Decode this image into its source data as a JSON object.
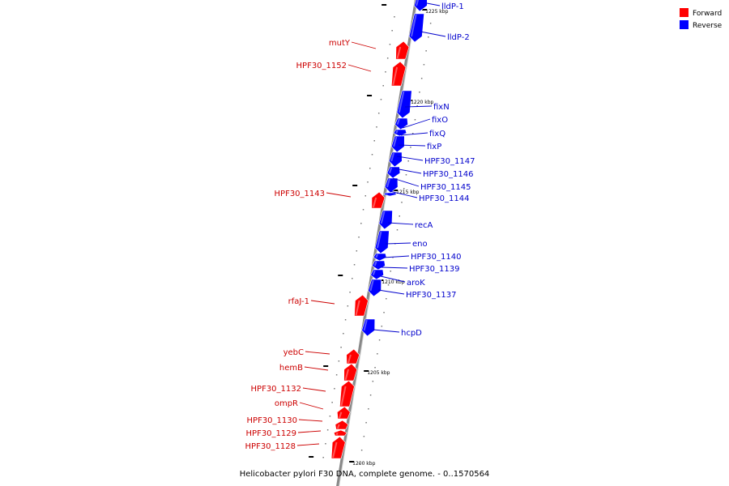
{
  "caption": "Helicobacter pylori F30 DNA, complete genome. - 0..1570564",
  "legend": [
    {
      "label": "Forward",
      "color": "#ff0000"
    },
    {
      "label": "Reverse",
      "color": "#0000ff"
    }
  ],
  "colors": {
    "forward": "#ff0000",
    "reverse": "#0000ff",
    "backbone": "#888888",
    "label_forward": "#cc0000",
    "label_reverse": "#0000cc"
  },
  "ticks": [
    {
      "label": "1225 kbp"
    },
    {
      "label": "1220 kbp"
    },
    {
      "label": "1215 kbp"
    },
    {
      "label": "1210 kbp"
    },
    {
      "label": "1205 kbp"
    },
    {
      "label": "1200 kbp"
    }
  ],
  "genes": [
    {
      "name": "lldP-1",
      "strand": "reverse"
    },
    {
      "name": "lldP-2",
      "strand": "reverse"
    },
    {
      "name": "mutY",
      "strand": "forward"
    },
    {
      "name": "HPF30_1152",
      "strand": "forward"
    },
    {
      "name": "fixN",
      "strand": "reverse"
    },
    {
      "name": "fixO",
      "strand": "reverse"
    },
    {
      "name": "fixQ",
      "strand": "reverse"
    },
    {
      "name": "fixP",
      "strand": "reverse"
    },
    {
      "name": "HPF30_1147",
      "strand": "reverse"
    },
    {
      "name": "HPF30_1146",
      "strand": "reverse"
    },
    {
      "name": "HPF30_1145",
      "strand": "reverse"
    },
    {
      "name": "HPF30_1144",
      "strand": "reverse"
    },
    {
      "name": "HPF30_1143",
      "strand": "forward"
    },
    {
      "name": "recA",
      "strand": "reverse"
    },
    {
      "name": "eno",
      "strand": "reverse"
    },
    {
      "name": "HPF30_1140",
      "strand": "reverse"
    },
    {
      "name": "HPF30_1139",
      "strand": "reverse"
    },
    {
      "name": "aroK",
      "strand": "reverse"
    },
    {
      "name": "HPF30_1137",
      "strand": "reverse"
    },
    {
      "name": "rfaJ-1",
      "strand": "forward"
    },
    {
      "name": "hcpD",
      "strand": "reverse"
    },
    {
      "name": "yebC",
      "strand": "forward"
    },
    {
      "name": "hemB",
      "strand": "forward"
    },
    {
      "name": "HPF30_1132",
      "strand": "forward"
    },
    {
      "name": "ompR",
      "strand": "forward"
    },
    {
      "name": "HPF30_1130",
      "strand": "forward"
    },
    {
      "name": "HPF30_1129",
      "strand": "forward"
    },
    {
      "name": "HPF30_1128",
      "strand": "forward"
    }
  ]
}
